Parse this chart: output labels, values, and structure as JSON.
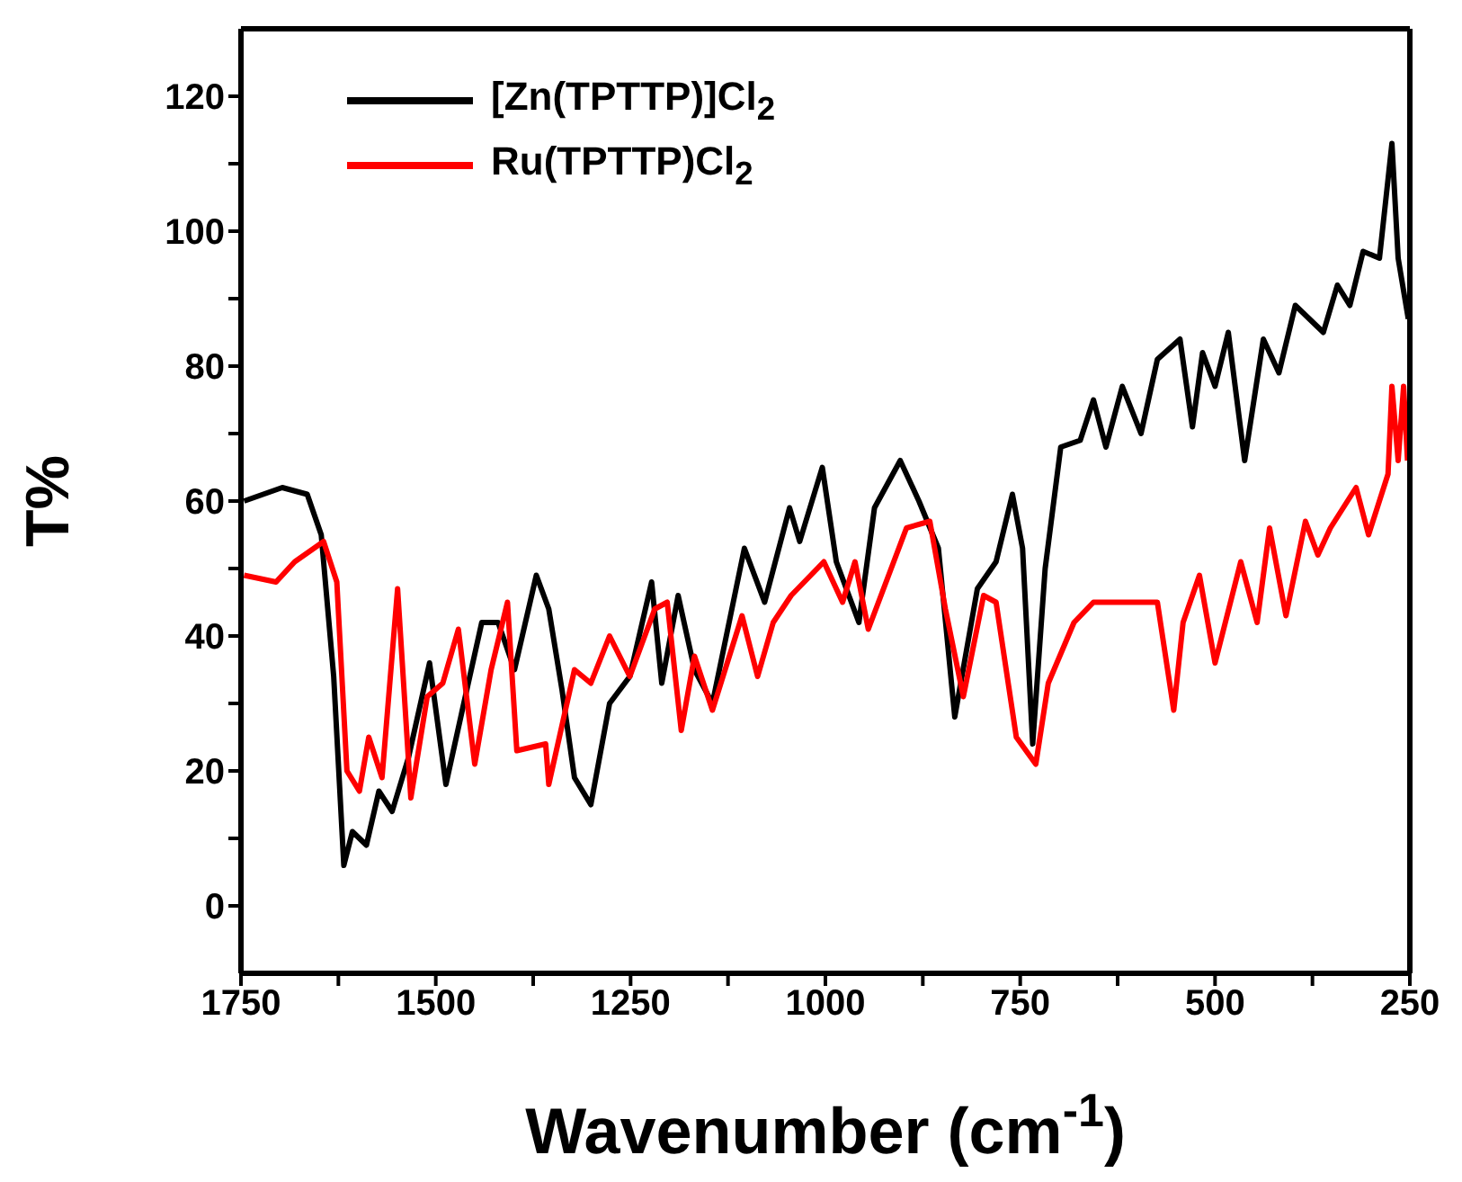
{
  "chart_data": {
    "type": "line",
    "xlabel": "Wavenumber (cm$^{-1}$)",
    "ylabel": "T%",
    "xlim": [
      1750,
      250
    ],
    "xticks": [
      1750,
      {
        "value": 1625,
        "label": null
      },
      1500,
      {
        "value": 1375,
        "label": null
      },
      1250,
      {
        "value": 1125,
        "label": null
      },
      1000,
      {
        "value": 875,
        "label": null
      },
      750,
      {
        "value": 625,
        "label": null
      },
      500,
      {
        "value": 375,
        "label": null
      },
      250
    ],
    "ylim": [
      -10,
      130
    ],
    "yticks": [
      0,
      {
        "value": 10,
        "label": null
      },
      20,
      {
        "value": 30,
        "label": null
      },
      40,
      {
        "value": 50,
        "label": null
      },
      60,
      {
        "value": 70,
        "label": null
      },
      80,
      {
        "value": 90,
        "label": null
      },
      100,
      {
        "value": 110,
        "label": null
      },
      120
    ],
    "legend": "top left",
    "marker": "none",
    "line_style": "solid",
    "series": [
      {
        "name": "[Zn(TPTTP)]Cl$_{2}$",
        "color": "#000000",
        "x": [
          1746,
          1697,
          1665,
          1647,
          1631,
          1618,
          1607,
          1589,
          1573,
          1556,
          1535,
          1508,
          1487,
          1466,
          1441,
          1420,
          1399,
          1371,
          1355,
          1338,
          1322,
          1301,
          1277,
          1251,
          1223,
          1210,
          1189,
          1168,
          1145,
          1104,
          1078,
          1046,
          1033,
          1004,
          986,
          957,
          937,
          904,
          880,
          855,
          834,
          805,
          781,
          760,
          747,
          734,
          718,
          698,
          673,
          656,
          640,
          619,
          595,
          574,
          545,
          529,
          516,
          500,
          483,
          462,
          438,
          418,
          397,
          361,
          343,
          327,
          310,
          289,
          273,
          265,
          252
        ],
        "values": [
          60,
          62,
          61,
          55,
          34,
          6,
          11,
          9,
          17,
          14,
          22,
          36,
          18,
          29,
          42,
          42,
          35,
          49,
          44,
          32,
          19,
          15,
          30,
          34,
          48,
          33,
          46,
          35,
          30,
          53,
          45,
          59,
          54,
          65,
          51,
          42,
          59,
          66,
          60,
          53,
          28,
          47,
          51,
          61,
          53,
          24,
          50,
          68,
          69,
          75,
          68,
          77,
          70,
          81,
          84,
          71,
          82,
          77,
          85,
          66,
          84,
          79,
          89,
          85,
          92,
          89,
          97,
          96,
          113,
          96,
          87
        ]
      },
      {
        "name": "Ru(TPTTP)Cl$_{2}$",
        "color": "#ff0000",
        "x": [
          1746,
          1705,
          1681,
          1644,
          1627,
          1614,
          1598,
          1586,
          1569,
          1549,
          1532,
          1511,
          1491,
          1471,
          1450,
          1429,
          1408,
          1396,
          1359,
          1355,
          1322,
          1301,
          1277,
          1251,
          1219,
          1203,
          1185,
          1168,
          1145,
          1107,
          1087,
          1067,
          1044,
          1002,
          978,
          962,
          945,
          896,
          866,
          846,
          823,
          797,
          781,
          755,
          730,
          714,
          681,
          656,
          574,
          553,
          541,
          520,
          500,
          467,
          446,
          430,
          409,
          384,
          368,
          352,
          319,
          303,
          278,
          273,
          265,
          258,
          253
        ],
        "values": [
          49,
          48,
          51,
          54,
          48,
          20,
          17,
          25,
          19,
          47,
          16,
          31,
          33,
          41,
          21,
          35,
          45,
          23,
          24,
          18,
          35,
          33,
          40,
          34,
          44,
          45,
          26,
          37,
          29,
          43,
          34,
          42,
          46,
          51,
          45,
          51,
          41,
          56,
          57,
          44,
          31,
          46,
          45,
          25,
          21,
          33,
          42,
          45,
          45,
          29,
          42,
          49,
          36,
          51,
          42,
          56,
          43,
          57,
          52,
          56,
          62,
          55,
          64,
          77,
          66,
          77,
          66
        ]
      }
    ]
  }
}
